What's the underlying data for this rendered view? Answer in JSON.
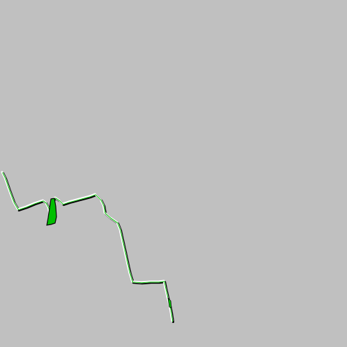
{
  "map": {
    "background_color": "#c0c0c0",
    "route_fill_color": "#00c000",
    "route_edge_color": "#000000",
    "route_highlight_color": "#ffffff"
  }
}
